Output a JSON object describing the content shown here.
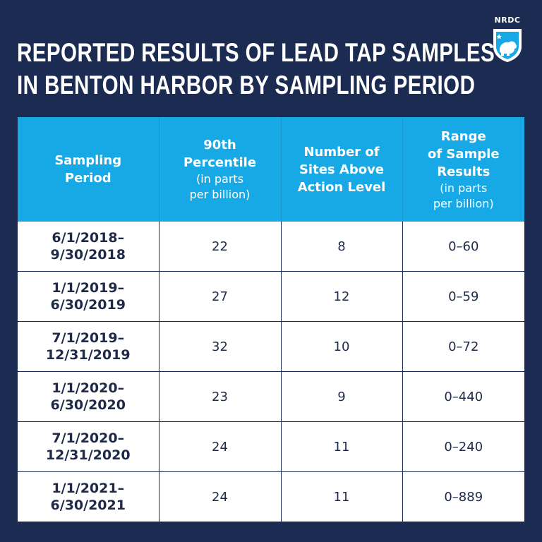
{
  "title": {
    "line1": "REPORTED RESULTS OF LEAD TAP SAMPLES",
    "line2": "IN BENTON HARBOR BY SAMPLING PERIOD"
  },
  "logo": {
    "text": "NRDC",
    "icon": "polar-bear-shield-icon"
  },
  "table": {
    "headers": [
      {
        "main": "Sampling\nPeriod",
        "sub": ""
      },
      {
        "main": "90th\nPercentile",
        "sub": "(in parts\nper billion)"
      },
      {
        "main": "Number of\nSites Above\nAction Level",
        "sub": ""
      },
      {
        "main": "Range\nof Sample\nResults",
        "sub": "(in parts\nper billion)"
      }
    ],
    "rows": [
      {
        "period_line1": "6/1/2018–",
        "period_line2": "9/30/2018",
        "percentile": "22",
        "sites": "8",
        "range": "0–60"
      },
      {
        "period_line1": "1/1/2019–",
        "period_line2": "6/30/2019",
        "percentile": "27",
        "sites": "12",
        "range": "0–59"
      },
      {
        "period_line1": "7/1/2019–",
        "period_line2": "12/31/2019",
        "percentile": "32",
        "sites": "10",
        "range": "0–72"
      },
      {
        "period_line1": "1/1/2020–",
        "period_line2": "6/30/2020",
        "percentile": "23",
        "sites": "9",
        "range": "0–440"
      },
      {
        "period_line1": "7/1/2020–",
        "period_line2": "12/31/2020",
        "percentile": "24",
        "sites": "11",
        "range": "0–240"
      },
      {
        "period_line1": "1/1/2021–",
        "period_line2": "6/30/2021",
        "percentile": "24",
        "sites": "11",
        "range": "0–889"
      }
    ]
  },
  "colors": {
    "background": "#1b2b52",
    "header": "#17a9e6",
    "cell": "#ffffff",
    "text_dark": "#1f2a48"
  }
}
